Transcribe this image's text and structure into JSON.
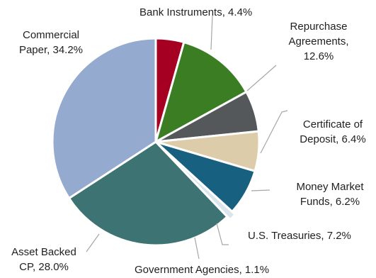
{
  "chart_data": {
    "type": "pie",
    "title": "",
    "slices": [
      {
        "label_lines": [
          "Bank Instruments, 4.4%"
        ],
        "value": 4.4,
        "color": "#a50021"
      },
      {
        "label_lines": [
          "Repurchase",
          "Agreements,",
          "12.6%"
        ],
        "value": 12.6,
        "color": "#3a7d22"
      },
      {
        "label_lines": [
          "Certificate of",
          "Deposit, 6.4%"
        ],
        "value": 6.4,
        "color": "#54585a"
      },
      {
        "label_lines": [
          "Money Market",
          "Funds, 6.2%"
        ],
        "value": 6.2,
        "color": "#dcccaa"
      },
      {
        "label_lines": [
          "U.S. Treasuries, 7.2%"
        ],
        "value": 7.2,
        "color": "#17607f"
      },
      {
        "label_lines": [
          "Government Agencies, 1.1%"
        ],
        "value": 1.1,
        "color": "#dbe5ee"
      },
      {
        "label_lines": [
          "Asset Backed",
          "CP, 28.0%"
        ],
        "value": 28.0,
        "color": "#3e7373"
      },
      {
        "label_lines": [
          "Commercial",
          "Paper, 34.2%"
        ],
        "value": 34.2,
        "color": "#95aacf"
      }
    ],
    "start_angle_deg": 0,
    "direction": "clockwise",
    "legend": "none",
    "data_labels": "outside with leader lines"
  }
}
